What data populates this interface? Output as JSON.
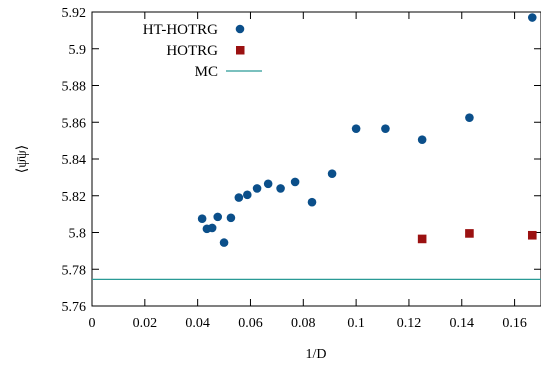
{
  "chart_data": {
    "type": "scatter",
    "xlabel": "1/D",
    "ylabel": "⟨ψ̄ψ⟩",
    "xlim": [
      0,
      0.17
    ],
    "ylim": [
      5.76,
      5.92
    ],
    "xticks": [
      "0",
      "0.02",
      "0.04",
      "0.06",
      "0.08",
      "0.1",
      "0.12",
      "0.14",
      "0.16"
    ],
    "yticks": [
      "5.76",
      "5.78",
      "5.8",
      "5.82",
      "5.84",
      "5.86",
      "5.88",
      "5.9",
      "5.92"
    ],
    "grid": false,
    "legend_position": "top-left",
    "series": [
      {
        "name": "HT-HOTRG",
        "marker": "circle",
        "color": "#0b4f8a",
        "x": [
          0.0417,
          0.0435,
          0.0455,
          0.0476,
          0.05,
          0.0526,
          0.0556,
          0.0588,
          0.0625,
          0.0667,
          0.0714,
          0.0769,
          0.0833,
          0.0909,
          0.1,
          0.1111,
          0.125,
          0.1429,
          0.1667
        ],
        "y": [
          5.8075,
          5.802,
          5.8025,
          5.8085,
          5.7945,
          5.808,
          5.819,
          5.8205,
          5.824,
          5.8265,
          5.824,
          5.8275,
          5.8165,
          5.832,
          5.8565,
          5.8565,
          5.8505,
          5.8625,
          5.917
        ]
      },
      {
        "name": "HOTRG",
        "marker": "square",
        "color": "#9b1111",
        "x": [
          0.125,
          0.1429,
          0.1667
        ],
        "y": [
          5.7965,
          5.7995,
          5.7985
        ]
      },
      {
        "name": "MC",
        "marker": "line",
        "color": "#2a9a96",
        "y": 5.7745
      }
    ]
  }
}
